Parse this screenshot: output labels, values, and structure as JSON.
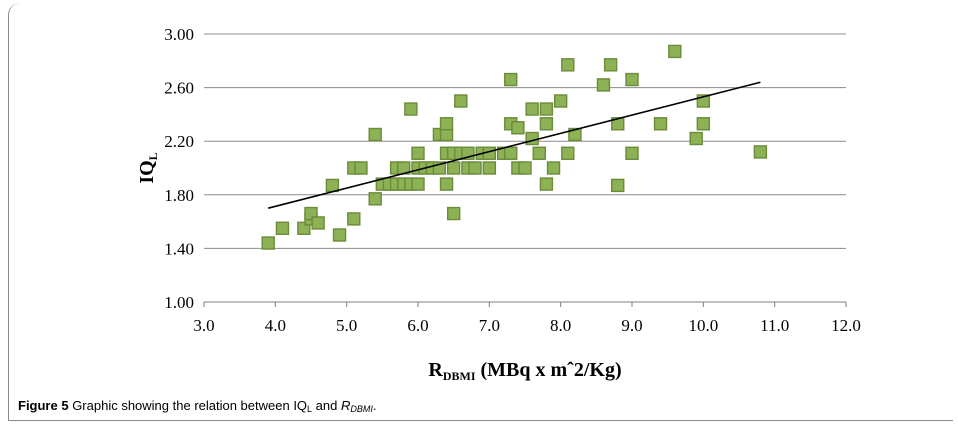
{
  "chart_data": {
    "type": "scatter",
    "title": "",
    "xlabel": {
      "main": "R",
      "sub": "DBMI",
      "suffix": " (MBq x mˆ2/Kg)"
    },
    "ylabel": {
      "main": "IQ",
      "sub": "L"
    },
    "xlim": [
      3.0,
      12.0
    ],
    "ylim": [
      1.0,
      3.0
    ],
    "x_ticks": [
      "3.0",
      "4.0",
      "5.0",
      "6.0",
      "7.0",
      "8.0",
      "9.0",
      "10.0",
      "11.0",
      "12.0"
    ],
    "y_ticks": [
      "1.00",
      "1.40",
      "1.80",
      "2.20",
      "2.60",
      "3.00"
    ],
    "grid": "horizontal",
    "marker_color": "#8db255",
    "marker_edge": "#6b8a3a",
    "trendline": {
      "x": [
        3.9,
        10.8
      ],
      "y": [
        1.7,
        2.64
      ]
    },
    "points": [
      [
        3.9,
        1.44
      ],
      [
        4.1,
        1.55
      ],
      [
        4.4,
        1.55
      ],
      [
        4.5,
        1.62
      ],
      [
        4.5,
        1.66
      ],
      [
        4.6,
        1.59
      ],
      [
        4.8,
        1.87
      ],
      [
        4.9,
        1.5
      ],
      [
        5.1,
        1.62
      ],
      [
        5.1,
        2.0
      ],
      [
        5.2,
        2.0
      ],
      [
        5.4,
        2.25
      ],
      [
        5.4,
        1.77
      ],
      [
        5.5,
        1.88
      ],
      [
        5.6,
        1.88
      ],
      [
        5.7,
        1.88
      ],
      [
        5.7,
        2.0
      ],
      [
        5.8,
        2.0
      ],
      [
        5.8,
        1.88
      ],
      [
        5.9,
        2.44
      ],
      [
        5.9,
        1.88
      ],
      [
        6.0,
        2.11
      ],
      [
        6.0,
        2.0
      ],
      [
        6.0,
        1.88
      ],
      [
        6.1,
        2.0
      ],
      [
        6.2,
        2.0
      ],
      [
        6.3,
        2.25
      ],
      [
        6.3,
        2.0
      ],
      [
        6.4,
        2.11
      ],
      [
        6.4,
        2.25
      ],
      [
        6.4,
        1.88
      ],
      [
        6.4,
        2.33
      ],
      [
        6.5,
        2.0
      ],
      [
        6.5,
        2.11
      ],
      [
        6.5,
        1.66
      ],
      [
        6.6,
        2.11
      ],
      [
        6.6,
        2.5
      ],
      [
        6.7,
        2.0
      ],
      [
        6.7,
        2.11
      ],
      [
        6.8,
        2.0
      ],
      [
        6.9,
        2.11
      ],
      [
        7.0,
        2.0
      ],
      [
        7.0,
        2.11
      ],
      [
        7.2,
        2.11
      ],
      [
        7.3,
        2.66
      ],
      [
        7.3,
        2.33
      ],
      [
        7.3,
        2.11
      ],
      [
        7.4,
        2.0
      ],
      [
        7.4,
        2.3
      ],
      [
        7.5,
        2.0
      ],
      [
        7.6,
        2.44
      ],
      [
        7.6,
        2.22
      ],
      [
        7.7,
        2.11
      ],
      [
        7.8,
        2.33
      ],
      [
        7.8,
        2.44
      ],
      [
        7.8,
        1.88
      ],
      [
        7.9,
        2.0
      ],
      [
        8.0,
        2.5
      ],
      [
        8.1,
        2.77
      ],
      [
        8.1,
        2.11
      ],
      [
        8.2,
        2.25
      ],
      [
        8.6,
        2.62
      ],
      [
        8.7,
        2.77
      ],
      [
        8.8,
        2.33
      ],
      [
        8.8,
        1.87
      ],
      [
        9.0,
        2.66
      ],
      [
        9.0,
        2.11
      ],
      [
        9.4,
        2.33
      ],
      [
        9.6,
        2.87
      ],
      [
        9.9,
        2.22
      ],
      [
        10.0,
        2.5
      ],
      [
        10.0,
        2.33
      ],
      [
        10.8,
        2.12
      ]
    ]
  },
  "caption": {
    "label": "Figure 5",
    "text_before": " Graphic showing the relation between IQ",
    "sub1": "L",
    "text_mid": " and ",
    "ital": "R",
    "sub2": "DBMI",
    "text_end": "."
  }
}
